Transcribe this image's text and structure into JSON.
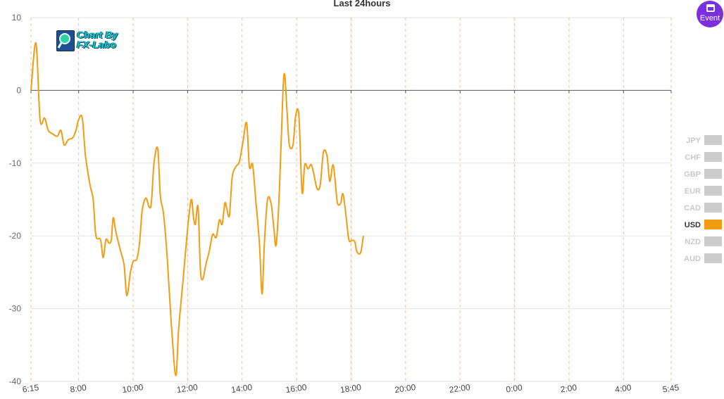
{
  "chart_data": {
    "type": "line",
    "title": "Last 24hours",
    "xlabel": "",
    "ylabel": "",
    "ylim": [
      -40,
      10
    ],
    "yticks": [
      10,
      0,
      -10,
      -20,
      -30,
      -40
    ],
    "x_start_minutes": 375,
    "x_end_minutes": 1785,
    "xtick_labels": [
      "6:15",
      "8:00",
      "10:00",
      "12:00",
      "14:00",
      "16:00",
      "18:00",
      "20:00",
      "22:00",
      "0:00",
      "2:00",
      "4:00",
      "5:45"
    ],
    "grid": true,
    "legend_position": "right",
    "series": [
      {
        "name": "USD",
        "color": "#f39c12",
        "points": [
          [
            375,
            0
          ],
          [
            386,
            6.5
          ],
          [
            395,
            -4
          ],
          [
            405,
            -3.8
          ],
          [
            413,
            -5.5
          ],
          [
            423,
            -6
          ],
          [
            433,
            -6.3
          ],
          [
            441,
            -5.5
          ],
          [
            448,
            -7.5
          ],
          [
            457,
            -6.8
          ],
          [
            467,
            -6.5
          ],
          [
            474,
            -5.5
          ],
          [
            480,
            -4
          ],
          [
            488,
            -3.8
          ],
          [
            495,
            -9
          ],
          [
            505,
            -13
          ],
          [
            512,
            -15
          ],
          [
            518,
            -20
          ],
          [
            528,
            -20.5
          ],
          [
            534,
            -23
          ],
          [
            540,
            -20.5
          ],
          [
            547,
            -21
          ],
          [
            552,
            -20.5
          ],
          [
            556,
            -17.5
          ],
          [
            562,
            -19.5
          ],
          [
            572,
            -22
          ],
          [
            580,
            -24
          ],
          [
            586,
            -28.2
          ],
          [
            594,
            -25
          ],
          [
            600,
            -23.5
          ],
          [
            608,
            -23.2
          ],
          [
            614,
            -21
          ],
          [
            620,
            -16.5
          ],
          [
            628,
            -14.8
          ],
          [
            635,
            -16
          ],
          [
            640,
            -15.5
          ],
          [
            646,
            -10
          ],
          [
            654,
            -8
          ],
          [
            660,
            -14.5
          ],
          [
            667,
            -17
          ],
          [
            675,
            -23
          ],
          [
            685,
            -33
          ],
          [
            694,
            -39.2
          ],
          [
            700,
            -33
          ],
          [
            710,
            -26
          ],
          [
            720,
            -19
          ],
          [
            728,
            -15
          ],
          [
            733,
            -17.5
          ],
          [
            737,
            -18.4
          ],
          [
            743,
            -16
          ],
          [
            748,
            -24.5
          ],
          [
            753,
            -26
          ],
          [
            760,
            -24
          ],
          [
            768,
            -22
          ],
          [
            775,
            -19.8
          ],
          [
            783,
            -20.2
          ],
          [
            790,
            -17.8
          ],
          [
            796,
            -18.4
          ],
          [
            802,
            -15.5
          ],
          [
            806,
            -16.2
          ],
          [
            812,
            -17.2
          ],
          [
            818,
            -12
          ],
          [
            826,
            -10.5
          ],
          [
            834,
            -9.8
          ],
          [
            842,
            -7
          ],
          [
            850,
            -4.5
          ],
          [
            856,
            -10.5
          ],
          [
            863,
            -10.2
          ],
          [
            870,
            -15
          ],
          [
            878,
            -21
          ],
          [
            884,
            -28
          ],
          [
            889,
            -21
          ],
          [
            896,
            -15
          ],
          [
            904,
            -15.6
          ],
          [
            910,
            -19
          ],
          [
            915,
            -21.2
          ],
          [
            922,
            -14
          ],
          [
            930,
            0
          ],
          [
            934,
            2
          ],
          [
            939,
            -3
          ],
          [
            944,
            -7.5
          ],
          [
            952,
            -7.5
          ],
          [
            958,
            -3.5
          ],
          [
            965,
            -3.5
          ],
          [
            972,
            -14
          ],
          [
            978,
            -10.2
          ],
          [
            985,
            -10.8
          ],
          [
            992,
            -10.2
          ],
          [
            998,
            -11.5
          ],
          [
            1005,
            -13.5
          ],
          [
            1012,
            -13
          ],
          [
            1019,
            -8.5
          ],
          [
            1027,
            -9
          ],
          [
            1033,
            -12.5
          ],
          [
            1040,
            -10.2
          ],
          [
            1045,
            -12.5
          ],
          [
            1050,
            -15.5
          ],
          [
            1057,
            -15.5
          ],
          [
            1062,
            -14.2
          ],
          [
            1068,
            -16.8
          ],
          [
            1075,
            -20.5
          ],
          [
            1082,
            -20.6
          ],
          [
            1088,
            -20.8
          ],
          [
            1093,
            -22.2
          ],
          [
            1101,
            -22.3
          ],
          [
            1107,
            -20
          ]
        ]
      }
    ]
  },
  "legend": {
    "items": [
      {
        "label": "JPY",
        "color": "#cccccc",
        "active": false
      },
      {
        "label": "CHF",
        "color": "#cccccc",
        "active": false
      },
      {
        "label": "GBP",
        "color": "#cccccc",
        "active": false
      },
      {
        "label": "EUR",
        "color": "#cccccc",
        "active": false
      },
      {
        "label": "CAD",
        "color": "#cccccc",
        "active": false
      },
      {
        "label": "USD",
        "color": "#f39c12",
        "active": true
      },
      {
        "label": "NZD",
        "color": "#cccccc",
        "active": false
      },
      {
        "label": "AUD",
        "color": "#cccccc",
        "active": false
      }
    ]
  },
  "logo": {
    "line1": "Chart By",
    "line2": "FX-Labo"
  },
  "event_button": {
    "label": "Event",
    "color": "#7a2fe0"
  }
}
